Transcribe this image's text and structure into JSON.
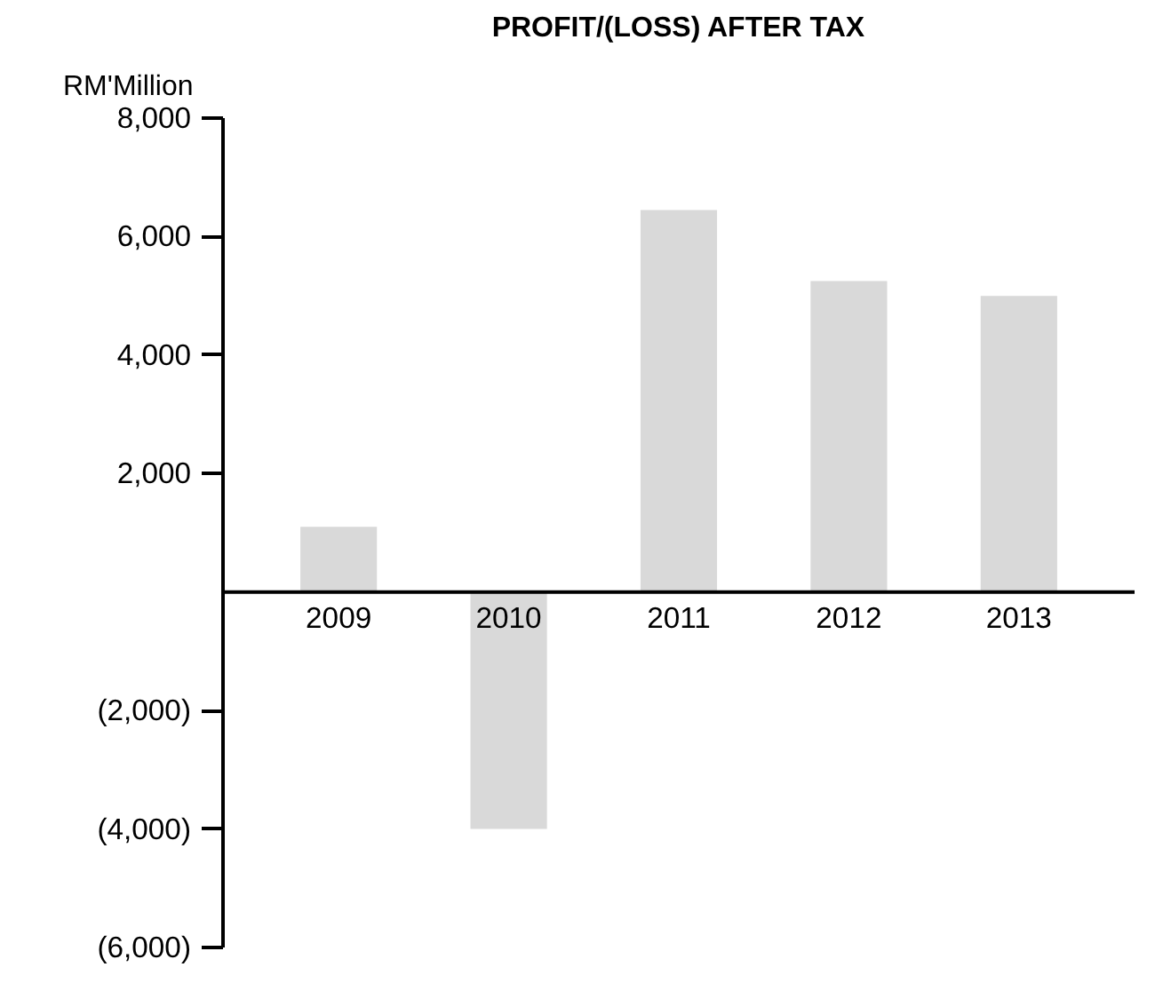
{
  "chart_data": {
    "type": "bar",
    "title": "PROFIT/(LOSS) AFTER TAX",
    "ylabel": "RM'Million",
    "categories": [
      "2009",
      "2010",
      "2011",
      "2012",
      "2013"
    ],
    "values": [
      1100,
      -4000,
      6450,
      5250,
      5000
    ],
    "color": "#d9d9d9",
    "ylim": [
      -6000,
      8000
    ],
    "yticks": [
      {
        "value": 8000,
        "label": "8,000"
      },
      {
        "value": 6000,
        "label": "6,000"
      },
      {
        "value": 4000,
        "label": "4,000"
      },
      {
        "value": 2000,
        "label": "2,000"
      },
      {
        "value": -2000,
        "label": "(2,000)"
      },
      {
        "value": -4000,
        "label": "(4,000)"
      },
      {
        "value": -6000,
        "label": "(6,000)"
      }
    ],
    "grid": false
  }
}
